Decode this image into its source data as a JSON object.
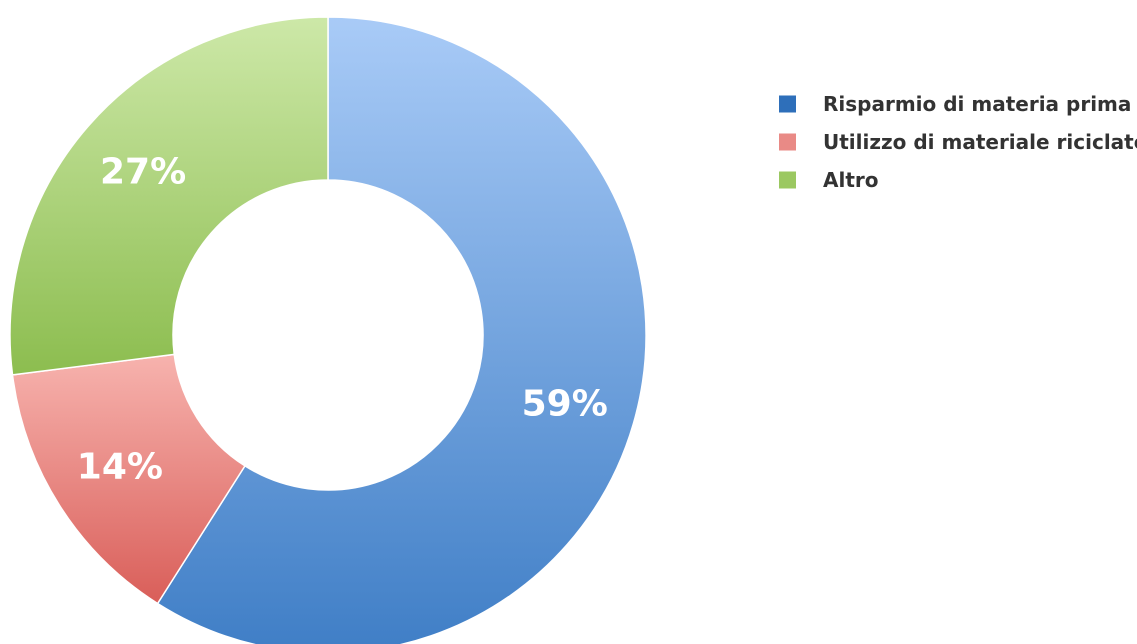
{
  "chart_data": {
    "type": "pie",
    "variant": "donut",
    "title": "",
    "categories": [
      "Risparmio di materia prima",
      "Utilizzo di materiale riciclato",
      "Altro"
    ],
    "values": [
      59,
      14,
      27
    ],
    "value_labels": [
      "59%",
      "14%",
      "27%"
    ],
    "colors": [
      "#2e6fba",
      "#e98a86",
      "#9bc861"
    ],
    "legend": {
      "placement": "right",
      "entries": [
        "Risparmio di materia prima",
        "Utilizzo di materiale riciclato",
        "Altro"
      ]
    },
    "start_angle": "12 o'clock",
    "direction": "clockwise"
  }
}
